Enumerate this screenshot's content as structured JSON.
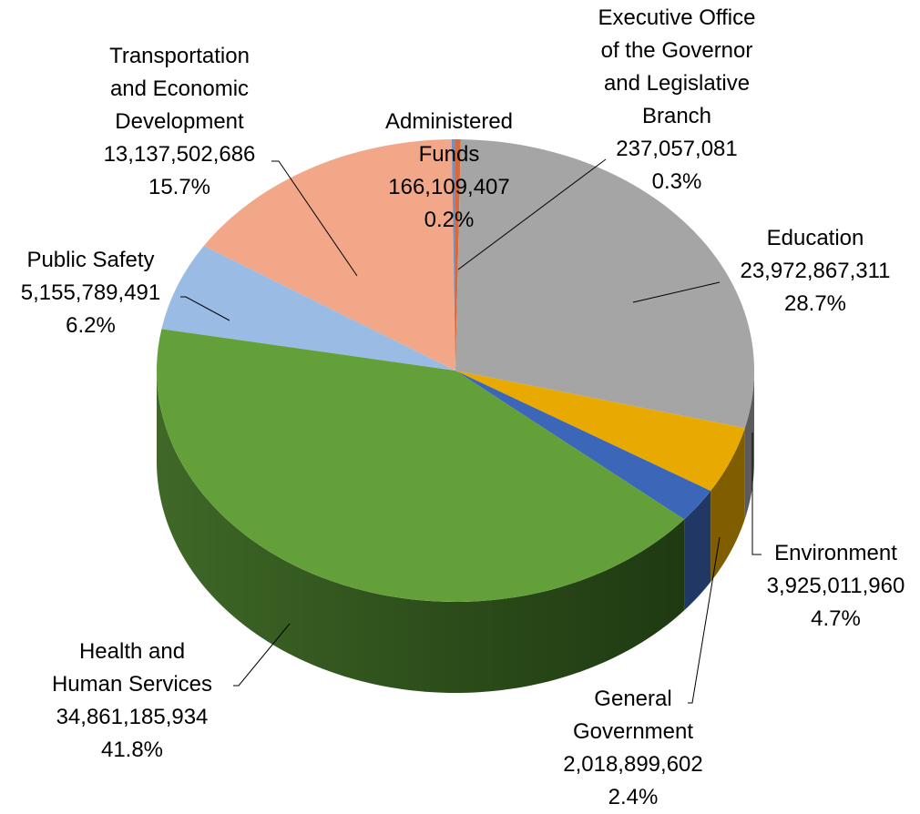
{
  "chart_data": {
    "type": "pie",
    "three_d": true,
    "start_angle_deg": 0,
    "direction": "clockwise",
    "legend": "none",
    "slices": [
      {
        "name": "Executive Office of the Governor and Legislative Branch",
        "label_lines": [
          "Executive Office",
          "of the Governor",
          "and Legislative",
          "Branch"
        ],
        "value": 237057081,
        "value_label": "237,057,081",
        "percent": 0.3,
        "percent_label": "0.3%",
        "color": "#D9693A"
      },
      {
        "name": "Education",
        "label_lines": [
          "Education"
        ],
        "value": 23972867311,
        "value_label": "23,972,867,311",
        "percent": 28.7,
        "percent_label": "28.7%",
        "color": "#A5A5A5"
      },
      {
        "name": "Environment",
        "label_lines": [
          "Environment"
        ],
        "value": 3925011960,
        "value_label": "3,925,011,960",
        "percent": 4.7,
        "percent_label": "4.7%",
        "color": "#E8AA00"
      },
      {
        "name": "General Government",
        "label_lines": [
          "General",
          "Government"
        ],
        "value": 2018899602,
        "value_label": "2,018,899,602",
        "percent": 2.4,
        "percent_label": "2.4%",
        "color": "#3C66B8"
      },
      {
        "name": "Health and Human Services",
        "label_lines": [
          "Health and",
          "Human Services"
        ],
        "value": 34861185934,
        "value_label": "34,861,185,934",
        "percent": 41.8,
        "percent_label": "41.8%",
        "color": "#64A03A"
      },
      {
        "name": "Public Safety",
        "label_lines": [
          "Public Safety"
        ],
        "value": 5155789491,
        "value_label": "5,155,789,491",
        "percent": 6.2,
        "percent_label": "6.2%",
        "color": "#9ABBE4"
      },
      {
        "name": "Transportation and Economic Development",
        "label_lines": [
          "Transportation",
          "and Economic",
          "Development"
        ],
        "value": 13137502686,
        "value_label": "13,137,502,686",
        "percent": 15.7,
        "percent_label": "15.7%",
        "color": "#F2A888"
      },
      {
        "name": "Administered Funds",
        "label_lines": [
          "Administered",
          "Funds"
        ],
        "value": 166109407,
        "value_label": "166,109,407",
        "percent": 0.2,
        "percent_label": "0.2%",
        "color": "#6E92C4"
      }
    ]
  }
}
